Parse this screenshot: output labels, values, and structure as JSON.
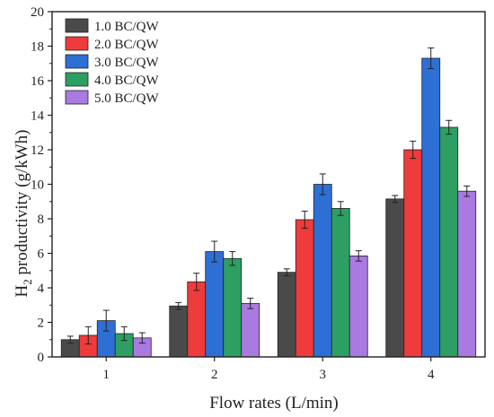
{
  "chart_data": {
    "type": "bar",
    "categories": [
      "1",
      "2",
      "3",
      "4"
    ],
    "xlabel": "Flow rates (L/min)",
    "ylabel": {
      "prefix": "H",
      "subscript": "2",
      "suffix": " productivity (g/kWh)"
    },
    "ylim": [
      0,
      20
    ],
    "yticks": [
      0,
      2,
      4,
      6,
      8,
      10,
      12,
      14,
      16,
      18,
      20
    ],
    "legend": {
      "position": "top-left"
    },
    "grid": false,
    "error_bars": true,
    "series": [
      {
        "name": "1.0 BC/QW",
        "color": "#4a4a4a",
        "values": [
          1.0,
          2.95,
          4.9,
          9.15
        ],
        "errors": [
          0.2,
          0.2,
          0.2,
          0.2
        ]
      },
      {
        "name": "2.0 BC/QW",
        "color": "#ef3b3b",
        "values": [
          1.25,
          4.35,
          7.95,
          12.0
        ],
        "errors": [
          0.5,
          0.5,
          0.5,
          0.5
        ]
      },
      {
        "name": "3.0 BC/QW",
        "color": "#2e6fd6",
        "values": [
          2.1,
          6.1,
          10.0,
          17.3
        ],
        "errors": [
          0.6,
          0.6,
          0.6,
          0.6
        ]
      },
      {
        "name": "4.0 BC/QW",
        "color": "#2e9f63",
        "values": [
          1.35,
          5.7,
          8.6,
          13.3
        ],
        "errors": [
          0.4,
          0.4,
          0.4,
          0.4
        ]
      },
      {
        "name": "5.0 BC/QW",
        "color": "#a97ae0",
        "values": [
          1.1,
          3.1,
          5.85,
          9.6
        ],
        "errors": [
          0.3,
          0.3,
          0.3,
          0.3
        ]
      }
    ]
  }
}
